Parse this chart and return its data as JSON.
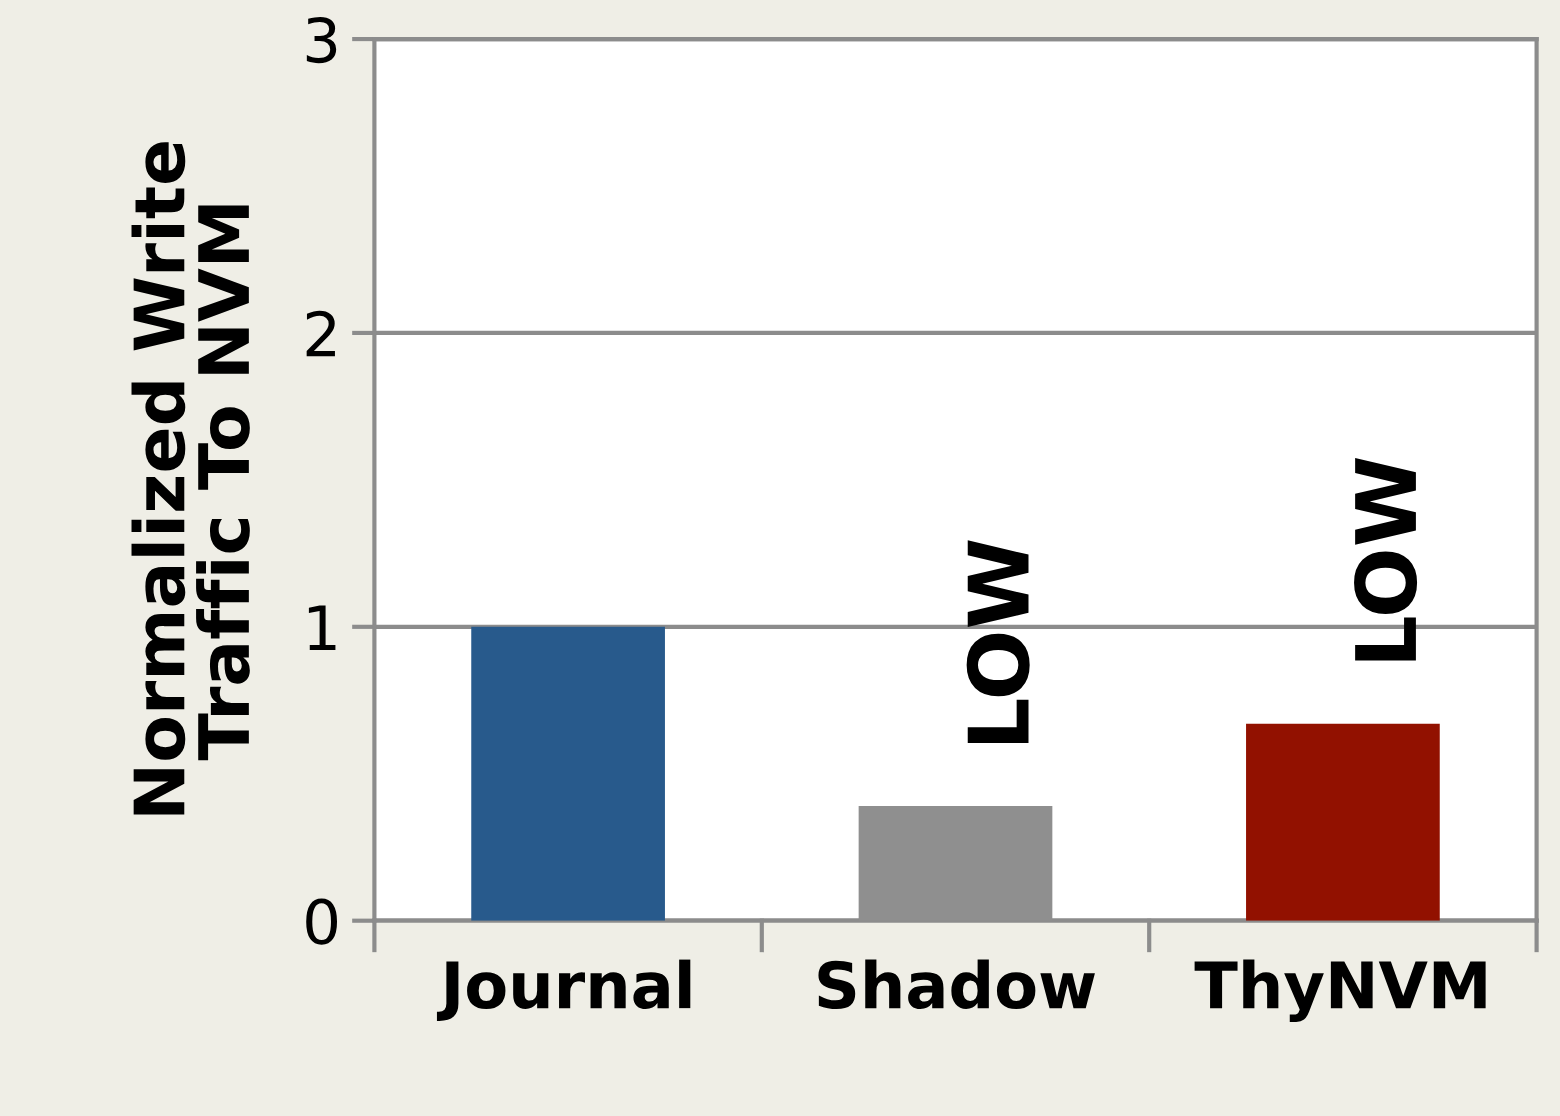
{
  "chart_data": {
    "type": "bar",
    "ylabel": "Normalized Write\nTraffic To NVM",
    "categories": [
      "Journal",
      "Shadow",
      "ThyNVM"
    ],
    "values": [
      1.0,
      0.39,
      0.67
    ],
    "colors": [
      "#285a8c",
      "#8f8f8f",
      "#921100"
    ],
    "ylim": [
      0,
      3
    ],
    "yticks": [
      0,
      1,
      2,
      3
    ],
    "grid": "y",
    "annotations": [
      {
        "text": "LOW",
        "x": "Shadow",
        "y": 0.39
      },
      {
        "text": "LOW",
        "x": "ThyNVM",
        "y": 0.67
      }
    ]
  }
}
